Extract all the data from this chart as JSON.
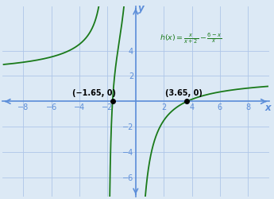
{
  "title": "",
  "xlabel": "x",
  "ylabel": "y",
  "xlim": [
    -9.5,
    9.5
  ],
  "ylim": [
    -7.5,
    7.5
  ],
  "xticks": [
    -8,
    -6,
    -4,
    -2,
    2,
    4,
    6,
    8
  ],
  "yticks": [
    -6,
    -4,
    -2,
    2,
    4
  ],
  "background_color": "#dce9f5",
  "plot_bg_color": "#dce9f5",
  "curve_color": "#1a7a1a",
  "axis_color": "#5b8dd9",
  "grid_color": "#aec6e8",
  "intercept1": [
    -1.65,
    0
  ],
  "intercept2": [
    3.65,
    0
  ],
  "formula_color": "#1a7a1a",
  "tick_color": "#5b8dd9",
  "label_color": "#5b8dd9",
  "intercept_label_color": "#000000"
}
